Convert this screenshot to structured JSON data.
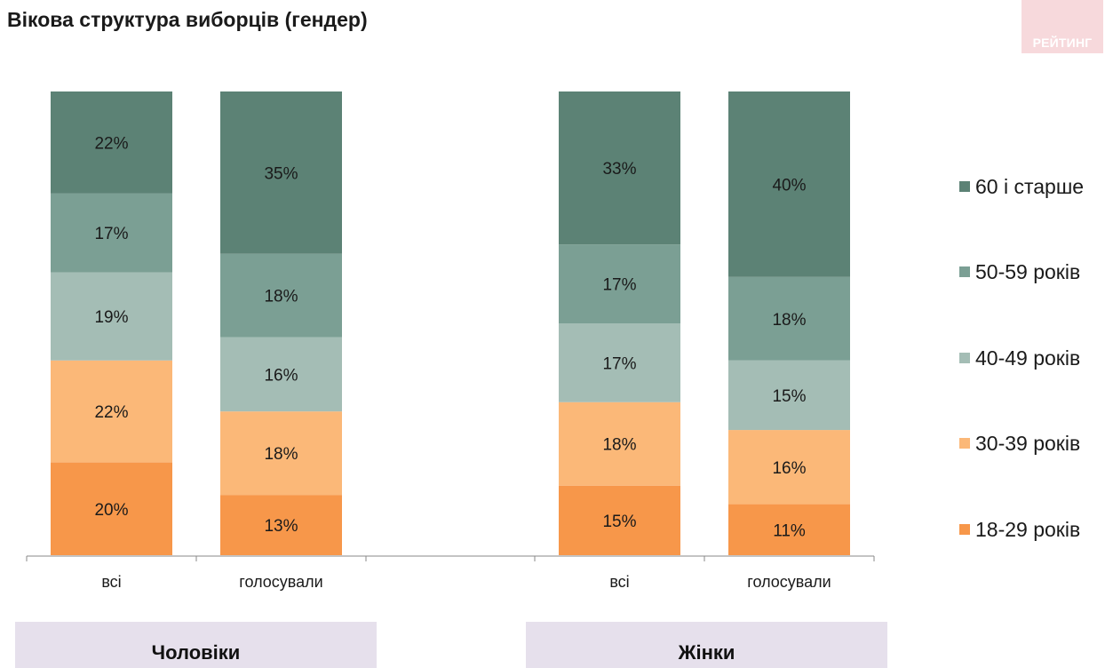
{
  "header": {
    "title": "Вікова структура виборців (гендер)",
    "logo_text": "РЕЙТИНГ"
  },
  "groups": [
    {
      "label": "Чоловіки"
    },
    {
      "label": "Жінки"
    }
  ],
  "chart_data": {
    "type": "bar",
    "stacked": true,
    "normalized": true,
    "title": "Вікова структура виборців (гендер)",
    "categories": [
      "всі",
      "голосували",
      "всі",
      "голосували"
    ],
    "category_groups": [
      "Чоловіки",
      "Чоловіки",
      "Жінки",
      "Жінки"
    ],
    "series": [
      {
        "name": "18-29 років",
        "color": "#F7974A",
        "values": [
          20,
          13,
          15,
          11
        ]
      },
      {
        "name": "30-39 років",
        "color": "#FBB878",
        "values": [
          22,
          18,
          18,
          16
        ]
      },
      {
        "name": "40-49 років",
        "color": "#A4BDB5",
        "values": [
          19,
          16,
          17,
          15
        ]
      },
      {
        "name": "50-59 років",
        "color": "#7B9F94",
        "values": [
          17,
          18,
          17,
          18
        ]
      },
      {
        "name": "60 і старше",
        "color": "#5C8275",
        "values": [
          22,
          35,
          33,
          40
        ]
      }
    ],
    "value_suffix": "%",
    "legend_position": "right",
    "legend_order": [
      "60 і старше",
      "50-59 років",
      "40-49 років",
      "30-39 років",
      "18-29 років"
    ],
    "grid": false
  }
}
